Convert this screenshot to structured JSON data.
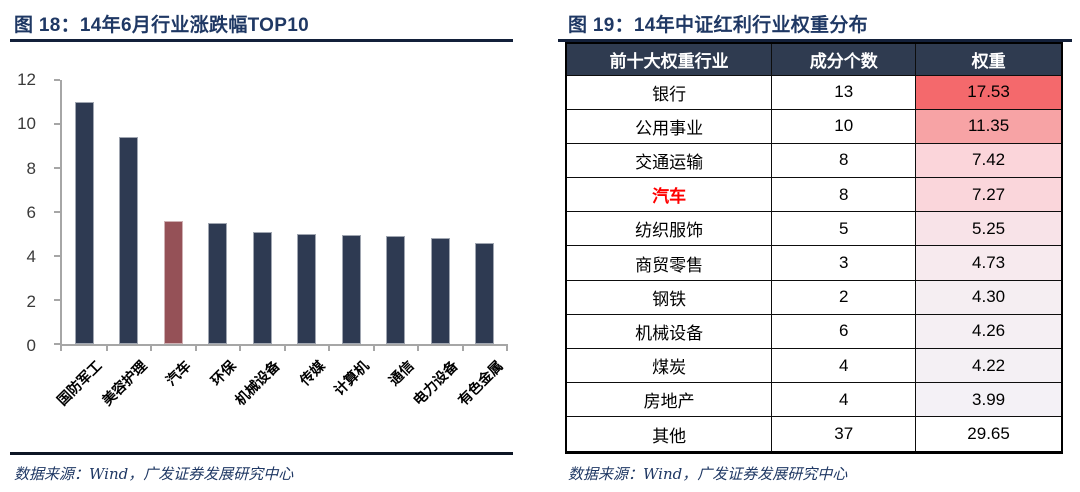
{
  "left_panel": {
    "title": "图 18：14年6月行业涨跌幅TOP10",
    "source": "数据来源：Wind，广发证券发展研究中心"
  },
  "right_panel": {
    "title": "图 19：14年中证红利行业权重分布",
    "source": "数据来源：Wind，广发证券发展研究中心"
  },
  "chart_data": {
    "type": "bar",
    "title": "14年6月行业涨跌幅TOP10",
    "categories": [
      "国防军工",
      "美容护理",
      "汽车",
      "环保",
      "机械设备",
      "传媒",
      "计算机",
      "通信",
      "电力设备",
      "有色金属"
    ],
    "values": [
      11.0,
      9.4,
      5.6,
      5.5,
      5.1,
      5.0,
      4.95,
      4.9,
      4.8,
      4.6
    ],
    "highlight_index": 2,
    "bar_color": "#2e3a52",
    "highlight_color": "#955157",
    "xlabel": "",
    "ylabel": "",
    "ylim": [
      0,
      12
    ],
    "yticks": [
      0,
      2,
      4,
      6,
      8,
      10,
      12
    ],
    "grid": false,
    "legend": "none"
  },
  "table": {
    "headers": [
      "前十大权重行业",
      "成分个数",
      "权重"
    ],
    "rows": [
      {
        "industry": "银行",
        "count": "13",
        "weight": "17.53",
        "weight_bg": "#f4696c",
        "highlight": false
      },
      {
        "industry": "公用事业",
        "count": "10",
        "weight": "11.35",
        "weight_bg": "#f7a3a5",
        "highlight": false
      },
      {
        "industry": "交通运输",
        "count": "8",
        "weight": "7.42",
        "weight_bg": "#fbd5da",
        "highlight": false
      },
      {
        "industry": "汽车",
        "count": "8",
        "weight": "7.27",
        "weight_bg": "#fad6db",
        "highlight": true
      },
      {
        "industry": "纺织服饰",
        "count": "5",
        "weight": "5.25",
        "weight_bg": "#f8e3e8",
        "highlight": false
      },
      {
        "industry": "商贸零售",
        "count": "3",
        "weight": "4.73",
        "weight_bg": "#f7eaee",
        "highlight": false
      },
      {
        "industry": "钢铁",
        "count": "2",
        "weight": "4.30",
        "weight_bg": "#f5eef2",
        "highlight": false
      },
      {
        "industry": "机械设备",
        "count": "6",
        "weight": "4.26",
        "weight_bg": "#f5eff3",
        "highlight": false
      },
      {
        "industry": "煤炭",
        "count": "4",
        "weight": "4.22",
        "weight_bg": "#f4f0f4",
        "highlight": false
      },
      {
        "industry": "房地产",
        "count": "4",
        "weight": "3.99",
        "weight_bg": "#f4f1f6",
        "highlight": false
      },
      {
        "industry": "其他",
        "count": "37",
        "weight": "29.65",
        "weight_bg": "#ffffff",
        "highlight": false
      }
    ]
  },
  "colors": {
    "title_navy": "#1f3864",
    "rule_dark": "#13203a",
    "axis_gray": "#a6a6a6",
    "header_bg": "#2f3b50",
    "highlight_text": "#ff0000"
  }
}
